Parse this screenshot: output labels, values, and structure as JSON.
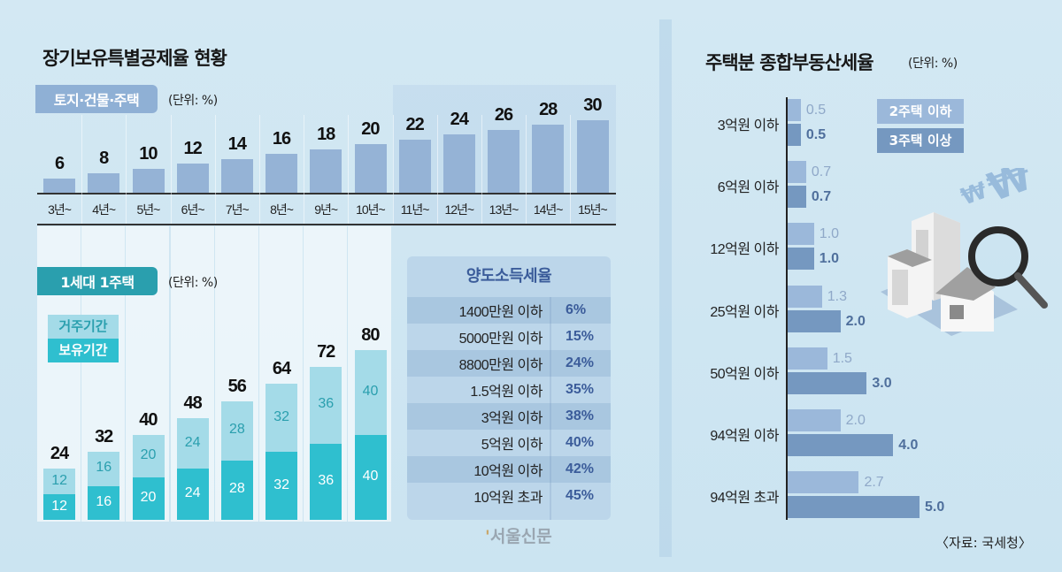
{
  "left": {
    "title": "장기보유특별공제율 현황",
    "top_tag": "토지·건물·주택",
    "top_unit": "(단위: %)",
    "bottom_tag": "1세대 1주택",
    "bottom_unit": "(단위: %)",
    "legend": {
      "residence": "거주기간",
      "holding": "보유기간"
    },
    "table": {
      "title": "양도소득세율",
      "rows": [
        {
          "bracket": "1400만원 이하",
          "rate": "6%"
        },
        {
          "bracket": "5000만원 이하",
          "rate": "15%"
        },
        {
          "bracket": "8800만원 이하",
          "rate": "24%"
        },
        {
          "bracket": "1.5억원 이하",
          "rate": "35%"
        },
        {
          "bracket": "3억원 이하",
          "rate": "38%"
        },
        {
          "bracket": "5억원 이하",
          "rate": "40%"
        },
        {
          "bracket": "10억원 이하",
          "rate": "42%"
        },
        {
          "bracket": "10억원 초과",
          "rate": "45%"
        }
      ]
    }
  },
  "right": {
    "title": "주택분 종합부동산세율",
    "unit": "(단위: %)",
    "source": "〈자료: 국세청〉"
  },
  "watermark": "서울신문",
  "colors": {
    "top_bar": "#95b3d6",
    "residence": "#a4dbe8",
    "holding": "#2fbfcf",
    "tag_blue": "#8fb0d5",
    "tag_teal": "#2a9fae",
    "light_h": "#9bb8da",
    "dark_h": "#7598c0"
  },
  "chart_data": [
    {
      "type": "bar",
      "title": "토지·건물·주택",
      "categories": [
        "3년~",
        "4년~",
        "5년~",
        "6년~",
        "7년~",
        "8년~",
        "9년~",
        "10년~",
        "11년~",
        "12년~",
        "13년~",
        "14년~",
        "15년~"
      ],
      "values": [
        6,
        8,
        10,
        12,
        14,
        16,
        18,
        20,
        22,
        24,
        26,
        28,
        30
      ],
      "value_labels": [
        "6",
        "8",
        "10",
        "12",
        "14",
        "16",
        "18",
        "20",
        "22",
        "24",
        "26",
        "28",
        "30"
      ],
      "ylabel": "%",
      "ylim": [
        0,
        30
      ]
    },
    {
      "type": "bar",
      "stacked": true,
      "title": "1세대 1주택",
      "series": [
        {
          "name": "보유기간",
          "values": [
            12,
            16,
            20,
            24,
            28,
            32,
            36,
            40
          ]
        },
        {
          "name": "거주기간",
          "values": [
            12,
            16,
            20,
            24,
            28,
            32,
            36,
            40
          ]
        }
      ],
      "totals": [
        24,
        32,
        40,
        48,
        56,
        64,
        72,
        80
      ],
      "ylim": [
        0,
        80
      ]
    },
    {
      "type": "bar",
      "orientation": "horizontal",
      "title": "주택분 종합부동산세율",
      "categories": [
        "3억원 이하",
        "6억원 이하",
        "12억원 이하",
        "25억원 이하",
        "50억원 이하",
        "94억원 이하",
        "94억원 초과"
      ],
      "series": [
        {
          "name": "2주택 이하",
          "values": [
            0.5,
            0.7,
            1.0,
            1.3,
            1.5,
            2.0,
            2.7
          ],
          "labels": [
            "0.5",
            "0.7",
            "1.0",
            "1.3",
            "1.5",
            "2.0",
            "2.7"
          ]
        },
        {
          "name": "3주택 이상",
          "values": [
            0.5,
            0.7,
            1.0,
            2.0,
            3.0,
            4.0,
            5.0
          ],
          "labels": [
            "0.5",
            "0.7",
            "1.0",
            "2.0",
            "3.0",
            "4.0",
            "5.0"
          ]
        }
      ],
      "xlim": [
        0,
        5.0
      ]
    }
  ]
}
